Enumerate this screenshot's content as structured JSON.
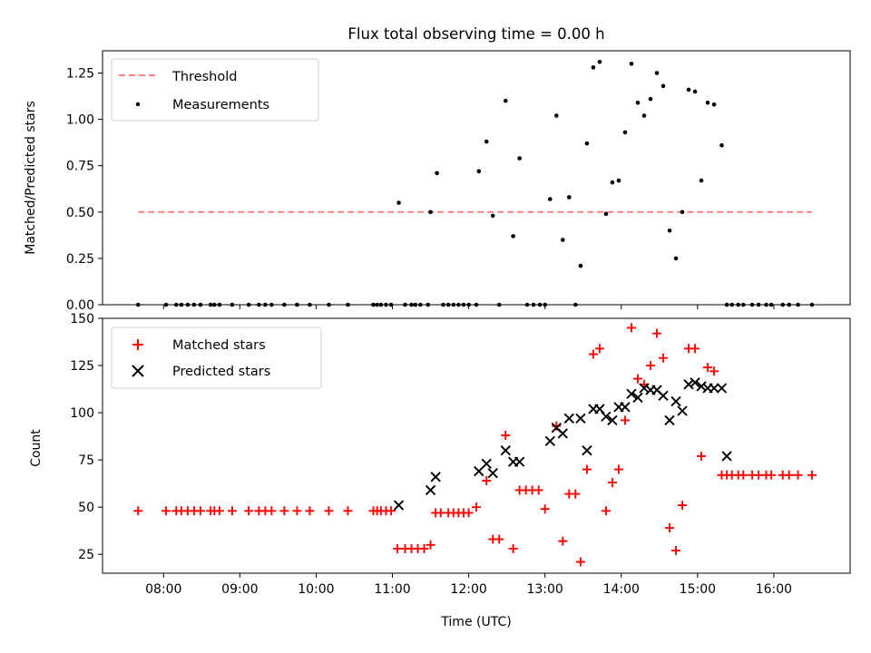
{
  "chart_data": [
    {
      "type": "scatter",
      "title": "Flux total observing time = 0.00 h",
      "xlabel": "",
      "ylabel": "Matched/Predicted stars",
      "xlim_hours": [
        7.2,
        17.0
      ],
      "ylim": [
        0,
        1.37
      ],
      "yticks": [
        0.0,
        0.25,
        0.5,
        0.75,
        1.0,
        1.25
      ],
      "ytick_labels": [
        "0.00",
        "0.25",
        "0.50",
        "0.75",
        "1.00",
        "1.25"
      ],
      "grid": false,
      "legend": "upper-left",
      "threshold": {
        "name": "Threshold",
        "value": 0.5,
        "x_range": [
          "07:40",
          "16:30"
        ],
        "color": "#ff7f7f"
      },
      "series": [
        {
          "name": "Measurements",
          "marker": "dot",
          "color": "#000000",
          "points": [
            [
              "07:40",
              0
            ],
            [
              "08:02",
              0
            ],
            [
              "08:10",
              0
            ],
            [
              "08:14",
              0
            ],
            [
              "08:19",
              0
            ],
            [
              "08:24",
              0
            ],
            [
              "08:29",
              0
            ],
            [
              "08:37",
              0
            ],
            [
              "08:40",
              0
            ],
            [
              "08:44",
              0
            ],
            [
              "08:54",
              0
            ],
            [
              "09:07",
              0
            ],
            [
              "09:15",
              0
            ],
            [
              "09:20",
              0
            ],
            [
              "09:25",
              0
            ],
            [
              "09:35",
              0
            ],
            [
              "09:45",
              0
            ],
            [
              "09:55",
              0
            ],
            [
              "10:10",
              0
            ],
            [
              "10:25",
              0
            ],
            [
              "10:45",
              0
            ],
            [
              "10:48",
              0
            ],
            [
              "10:51",
              0
            ],
            [
              "10:55",
              0
            ],
            [
              "10:59",
              0
            ],
            [
              "11:05",
              0.55
            ],
            [
              "11:10",
              0
            ],
            [
              "11:15",
              0
            ],
            [
              "11:18",
              0
            ],
            [
              "11:22",
              0
            ],
            [
              "11:28",
              0
            ],
            [
              "11:30",
              0.5
            ],
            [
              "11:35",
              0.71
            ],
            [
              "11:40",
              0
            ],
            [
              "11:44",
              0
            ],
            [
              "11:48",
              0
            ],
            [
              "11:52",
              0
            ],
            [
              "11:56",
              0
            ],
            [
              "12:00",
              0
            ],
            [
              "12:06",
              0
            ],
            [
              "12:08",
              0.72
            ],
            [
              "12:14",
              0.88
            ],
            [
              "12:19",
              0.48
            ],
            [
              "12:24",
              0
            ],
            [
              "12:29",
              1.1
            ],
            [
              "12:35",
              0.37
            ],
            [
              "12:40",
              0.79
            ],
            [
              "12:46",
              0
            ],
            [
              "12:51",
              0
            ],
            [
              "12:56",
              0
            ],
            [
              "13:00",
              0
            ],
            [
              "13:04",
              0.57
            ],
            [
              "13:09",
              1.02
            ],
            [
              "13:14",
              0.35
            ],
            [
              "13:19",
              0.58
            ],
            [
              "13:24",
              0
            ],
            [
              "13:28",
              0.21
            ],
            [
              "13:33",
              0.87
            ],
            [
              "13:38",
              1.28
            ],
            [
              "13:43",
              1.31
            ],
            [
              "13:48",
              0.49
            ],
            [
              "13:53",
              0.66
            ],
            [
              "13:58",
              0.67
            ],
            [
              "14:03",
              0.93
            ],
            [
              "14:08",
              1.3
            ],
            [
              "14:13",
              1.09
            ],
            [
              "14:18",
              1.02
            ],
            [
              "14:23",
              1.11
            ],
            [
              "14:28",
              1.25
            ],
            [
              "14:33",
              1.18
            ],
            [
              "14:38",
              0.4
            ],
            [
              "14:43",
              0.25
            ],
            [
              "14:48",
              0.5
            ],
            [
              "14:53",
              1.16
            ],
            [
              "14:58",
              1.15
            ],
            [
              "15:03",
              0.67
            ],
            [
              "15:08",
              1.09
            ],
            [
              "15:13",
              1.08
            ],
            [
              "15:19",
              0.86
            ],
            [
              "15:23",
              0
            ],
            [
              "15:27",
              0
            ],
            [
              "15:32",
              0
            ],
            [
              "15:36",
              0
            ],
            [
              "15:43",
              0
            ],
            [
              "15:48",
              0
            ],
            [
              "15:54",
              0
            ],
            [
              "15:58",
              0
            ],
            [
              "16:07",
              0
            ],
            [
              "16:12",
              0
            ],
            [
              "16:19",
              0
            ],
            [
              "16:30",
              0
            ]
          ]
        }
      ]
    },
    {
      "type": "scatter",
      "title": "",
      "xlabel": "Time (UTC)",
      "ylabel": "Count",
      "xlim_hours": [
        7.2,
        17.0
      ],
      "ylim": [
        15,
        150
      ],
      "yticks": [
        25,
        50,
        75,
        100,
        125,
        150
      ],
      "ytick_labels": [
        "25",
        "50",
        "75",
        "100",
        "125",
        "150"
      ],
      "xticks": [
        "08:00",
        "09:00",
        "10:00",
        "11:00",
        "12:00",
        "13:00",
        "14:00",
        "15:00",
        "16:00"
      ],
      "grid": false,
      "legend": "upper-left",
      "series": [
        {
          "name": "Matched stars",
          "marker": "plus",
          "color": "#ff0000",
          "points": [
            [
              "07:40",
              48
            ],
            [
              "08:02",
              48
            ],
            [
              "08:10",
              48
            ],
            [
              "08:14",
              48
            ],
            [
              "08:19",
              48
            ],
            [
              "08:24",
              48
            ],
            [
              "08:29",
              48
            ],
            [
              "08:37",
              48
            ],
            [
              "08:40",
              48
            ],
            [
              "08:44",
              48
            ],
            [
              "08:54",
              48
            ],
            [
              "09:07",
              48
            ],
            [
              "09:15",
              48
            ],
            [
              "09:20",
              48
            ],
            [
              "09:25",
              48
            ],
            [
              "09:35",
              48
            ],
            [
              "09:45",
              48
            ],
            [
              "09:55",
              48
            ],
            [
              "10:10",
              48
            ],
            [
              "10:25",
              48
            ],
            [
              "10:45",
              48
            ],
            [
              "10:48",
              48
            ],
            [
              "10:51",
              48
            ],
            [
              "10:55",
              48
            ],
            [
              "10:59",
              48
            ],
            [
              "11:04",
              28
            ],
            [
              "11:10",
              28
            ],
            [
              "11:15",
              28
            ],
            [
              "11:20",
              28
            ],
            [
              "11:25",
              28
            ],
            [
              "11:30",
              30
            ],
            [
              "11:34",
              47
            ],
            [
              "11:38",
              47
            ],
            [
              "11:44",
              47
            ],
            [
              "11:48",
              47
            ],
            [
              "11:52",
              47
            ],
            [
              "11:56",
              47
            ],
            [
              "12:00",
              47
            ],
            [
              "12:06",
              50
            ],
            [
              "12:14",
              64
            ],
            [
              "12:19",
              33
            ],
            [
              "12:24",
              33
            ],
            [
              "12:29",
              88
            ],
            [
              "12:35",
              28
            ],
            [
              "12:40",
              59
            ],
            [
              "12:45",
              59
            ],
            [
              "12:50",
              59
            ],
            [
              "12:55",
              59
            ],
            [
              "13:00",
              49
            ],
            [
              "13:09",
              93
            ],
            [
              "13:14",
              32
            ],
            [
              "13:19",
              57
            ],
            [
              "13:24",
              57
            ],
            [
              "13:28",
              21
            ],
            [
              "13:33",
              70
            ],
            [
              "13:38",
              131
            ],
            [
              "13:43",
              134
            ],
            [
              "13:48",
              48
            ],
            [
              "13:53",
              63
            ],
            [
              "13:58",
              70
            ],
            [
              "14:03",
              96
            ],
            [
              "14:08",
              145
            ],
            [
              "14:13",
              118
            ],
            [
              "14:18",
              115
            ],
            [
              "14:23",
              125
            ],
            [
              "14:28",
              142
            ],
            [
              "14:33",
              129
            ],
            [
              "14:38",
              39
            ],
            [
              "14:43",
              27
            ],
            [
              "14:48",
              51
            ],
            [
              "14:53",
              134
            ],
            [
              "14:58",
              134
            ],
            [
              "15:03",
              77
            ],
            [
              "15:08",
              124
            ],
            [
              "15:13",
              122
            ],
            [
              "15:19",
              67
            ],
            [
              "15:23",
              67
            ],
            [
              "15:27",
              67
            ],
            [
              "15:32",
              67
            ],
            [
              "15:36",
              67
            ],
            [
              "15:43",
              67
            ],
            [
              "15:48",
              67
            ],
            [
              "15:54",
              67
            ],
            [
              "15:58",
              67
            ],
            [
              "16:07",
              67
            ],
            [
              "16:12",
              67
            ],
            [
              "16:19",
              67
            ],
            [
              "16:30",
              67
            ]
          ]
        },
        {
          "name": "Predicted stars",
          "marker": "x",
          "color": "#000000",
          "points": [
            [
              "11:05",
              51
            ],
            [
              "11:30",
              59
            ],
            [
              "11:34",
              66
            ],
            [
              "12:08",
              69
            ],
            [
              "12:14",
              73
            ],
            [
              "12:19",
              68
            ],
            [
              "12:29",
              80
            ],
            [
              "12:35",
              74
            ],
            [
              "12:40",
              74
            ],
            [
              "13:04",
              85
            ],
            [
              "13:09",
              92
            ],
            [
              "13:14",
              89
            ],
            [
              "13:19",
              97
            ],
            [
              "13:28",
              97
            ],
            [
              "13:33",
              80
            ],
            [
              "13:38",
              102
            ],
            [
              "13:43",
              102
            ],
            [
              "13:48",
              98
            ],
            [
              "13:53",
              96
            ],
            [
              "13:58",
              103
            ],
            [
              "14:03",
              103
            ],
            [
              "14:08",
              110
            ],
            [
              "14:13",
              108
            ],
            [
              "14:18",
              113
            ],
            [
              "14:23",
              112
            ],
            [
              "14:28",
              112
            ],
            [
              "14:33",
              109
            ],
            [
              "14:38",
              96
            ],
            [
              "14:43",
              106
            ],
            [
              "14:48",
              101
            ],
            [
              "14:53",
              115
            ],
            [
              "14:58",
              116
            ],
            [
              "15:03",
              114
            ],
            [
              "15:08",
              113
            ],
            [
              "15:13",
              113
            ],
            [
              "15:19",
              113
            ],
            [
              "15:23",
              77
            ]
          ]
        }
      ]
    }
  ]
}
